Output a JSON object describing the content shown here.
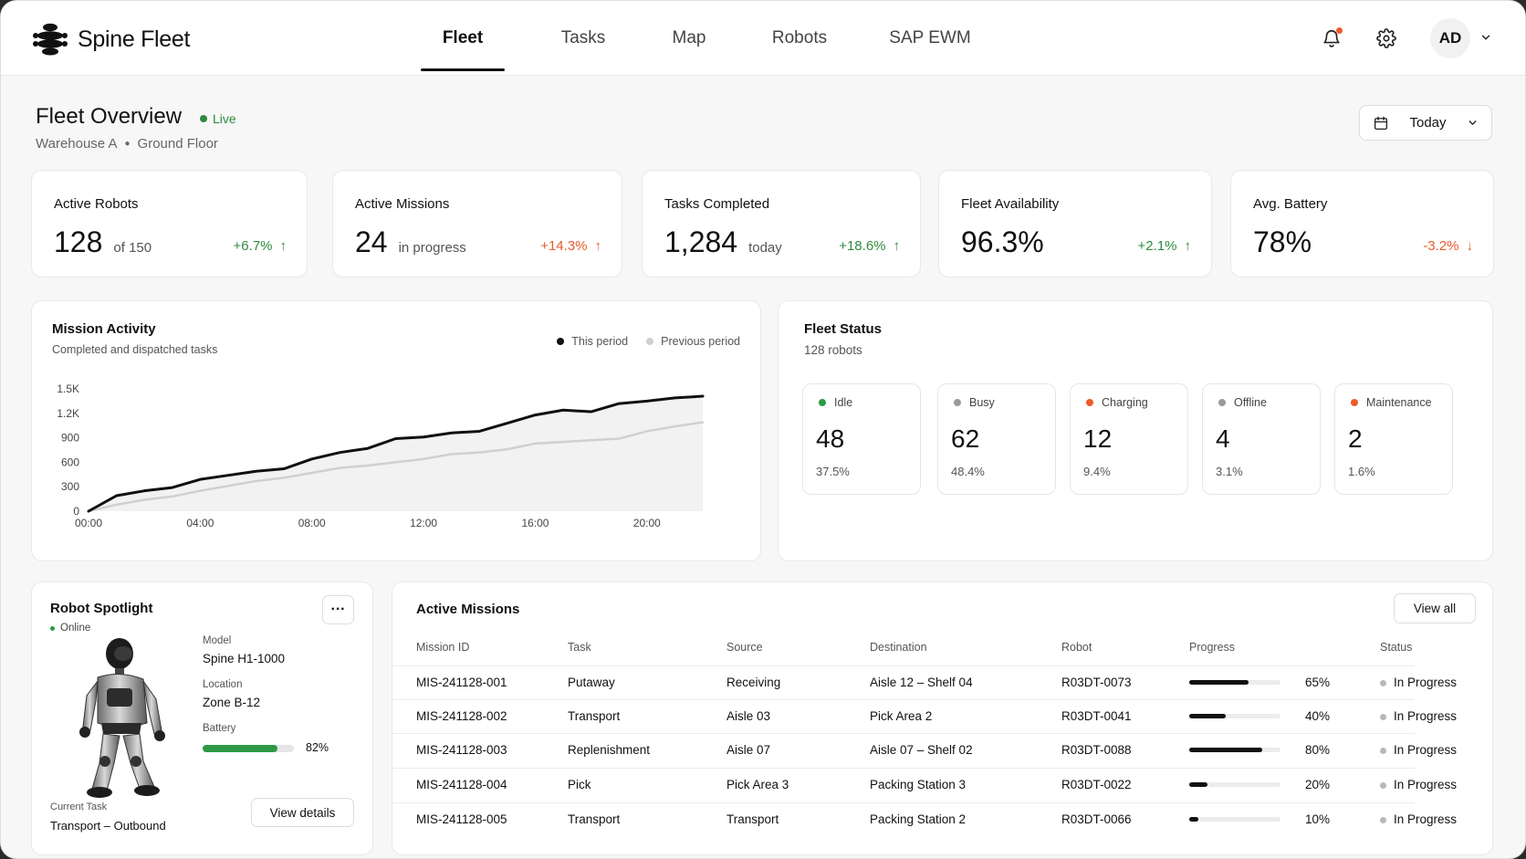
{
  "app": {
    "name": "Spine Fleet"
  },
  "nav": {
    "items": [
      {
        "label": "Fleet",
        "active": true
      },
      {
        "label": "Tasks",
        "active": false
      },
      {
        "label": "Map",
        "active": false
      },
      {
        "label": "Robots",
        "active": false
      },
      {
        "label": "SAP EWM",
        "active": false
      }
    ]
  },
  "user": {
    "initials": "AD"
  },
  "header": {
    "title": "Fleet Overview",
    "live_label": "Live",
    "breadcrumb": [
      "Warehouse A",
      "Ground Floor"
    ],
    "date_filter": "Today"
  },
  "kpis": [
    {
      "label": "Active Robots",
      "value": "128",
      "sub": "of 150",
      "delta": "+6.7%",
      "trend": "up"
    },
    {
      "label": "Active Missions",
      "value": "24",
      "sub": "in progress",
      "delta": "+14.3%",
      "trend": "up-orange"
    },
    {
      "label": "Tasks Completed",
      "value": "1,284",
      "sub": "today",
      "delta": "+18.6%",
      "trend": "up"
    },
    {
      "label": "Fleet Availability",
      "value": "96.3%",
      "sub": "",
      "delta": "+2.1%",
      "trend": "up"
    },
    {
      "label": "Avg. Battery",
      "value": "78%",
      "sub": "",
      "delta": "-3.2%",
      "trend": "down"
    }
  ],
  "mission_activity": {
    "title": "Mission Activity",
    "subtitle": "Completed and dispatched tasks",
    "legend": [
      "This period",
      "Previous period"
    ]
  },
  "chart_data": {
    "type": "line",
    "title": "Mission Activity",
    "x": [
      "00:00",
      "01:00",
      "02:00",
      "03:00",
      "04:00",
      "05:00",
      "06:00",
      "07:00",
      "08:00",
      "09:00",
      "10:00",
      "11:00",
      "12:00",
      "13:00",
      "14:00",
      "15:00",
      "16:00",
      "17:00",
      "18:00",
      "19:00",
      "20:00",
      "21:00",
      "22:00"
    ],
    "xticks": [
      "00:00",
      "04:00",
      "08:00",
      "12:00",
      "16:00",
      "20:00"
    ],
    "yticks": [
      "0",
      "300",
      "600",
      "900",
      "1.2K",
      "1.5K"
    ],
    "ylim": [
      0,
      1500
    ],
    "series": [
      {
        "name": "This period",
        "color": "#111111",
        "values": [
          0,
          190,
          250,
          290,
          390,
          440,
          490,
          520,
          640,
          720,
          770,
          890,
          910,
          960,
          980,
          1080,
          1180,
          1240,
          1220,
          1320,
          1350,
          1390,
          1410
        ]
      },
      {
        "name": "Previous period",
        "color": "#d0d0d0",
        "values": [
          0,
          80,
          140,
          180,
          250,
          310,
          370,
          410,
          470,
          530,
          560,
          600,
          640,
          700,
          720,
          760,
          830,
          850,
          870,
          890,
          980,
          1040,
          1090
        ]
      }
    ],
    "legend_position": "top-right",
    "grid": false
  },
  "fleet_status": {
    "title": "Fleet Status",
    "subtitle": "128 robots",
    "items": [
      {
        "label": "Idle",
        "count": "48",
        "pct": "37.5%",
        "color": "#2e9a48"
      },
      {
        "label": "Busy",
        "count": "62",
        "pct": "48.4%",
        "color": "#9a9a9a"
      },
      {
        "label": "Charging",
        "count": "12",
        "pct": "9.4%",
        "color": "#ef5a2a"
      },
      {
        "label": "Offline",
        "count": "4",
        "pct": "3.1%",
        "color": "#9a9a9a"
      },
      {
        "label": "Maintenance",
        "count": "2",
        "pct": "1.6%",
        "color": "#ef5a2a"
      }
    ]
  },
  "robot_spotlight": {
    "title": "Robot Spotlight",
    "status": "Online",
    "more": "···",
    "model_label": "Model",
    "model": "Spine H1-1000",
    "location_label": "Location",
    "location": "Zone B-12",
    "battery_label": "Battery",
    "battery": "82%",
    "battery_level": 0.82,
    "current_task_label": "Current Task",
    "current_task": "Transport – Outbound",
    "details_button": "View details"
  },
  "active_missions": {
    "title": "Active Missions",
    "view_all": "View all",
    "columns": [
      "Mission ID",
      "Task",
      "Source",
      "Destination",
      "Robot",
      "Progress",
      "Status"
    ],
    "rows": [
      {
        "id": "MIS-241128-001",
        "task": "Putaway",
        "source": "Receiving",
        "destination": "Aisle 12 – Shelf 04",
        "robot": "R03DT-0073",
        "progress": 65,
        "progress_label": "65%",
        "status": "In Progress"
      },
      {
        "id": "MIS-241128-002",
        "task": "Transport",
        "source": "Aisle 03",
        "destination": "Pick Area 2",
        "robot": "R03DT-0041",
        "progress": 40,
        "progress_label": "40%",
        "status": "In Progress"
      },
      {
        "id": "MIS-241128-003",
        "task": "Replenishment",
        "source": "Aisle 07",
        "destination": "Aisle 07 – Shelf 02",
        "robot": "R03DT-0088",
        "progress": 80,
        "progress_label": "80%",
        "status": "In Progress"
      },
      {
        "id": "MIS-241128-004",
        "task": "Pick",
        "source": "Pick Area 3",
        "destination": "Packing Station 3",
        "robot": "R03DT-0022",
        "progress": 20,
        "progress_label": "20%",
        "status": "In Progress"
      },
      {
        "id": "MIS-241128-005",
        "task": "Transport",
        "source": "Transport",
        "destination": "Packing Station 2",
        "robot": "R03DT-0066",
        "progress": 10,
        "progress_label": "10%",
        "status": "In Progress"
      }
    ]
  },
  "icons": {
    "notifications": "bell-icon",
    "settings": "gear-icon",
    "calendar": "calendar-icon",
    "chevron": "chevron-down-icon"
  }
}
